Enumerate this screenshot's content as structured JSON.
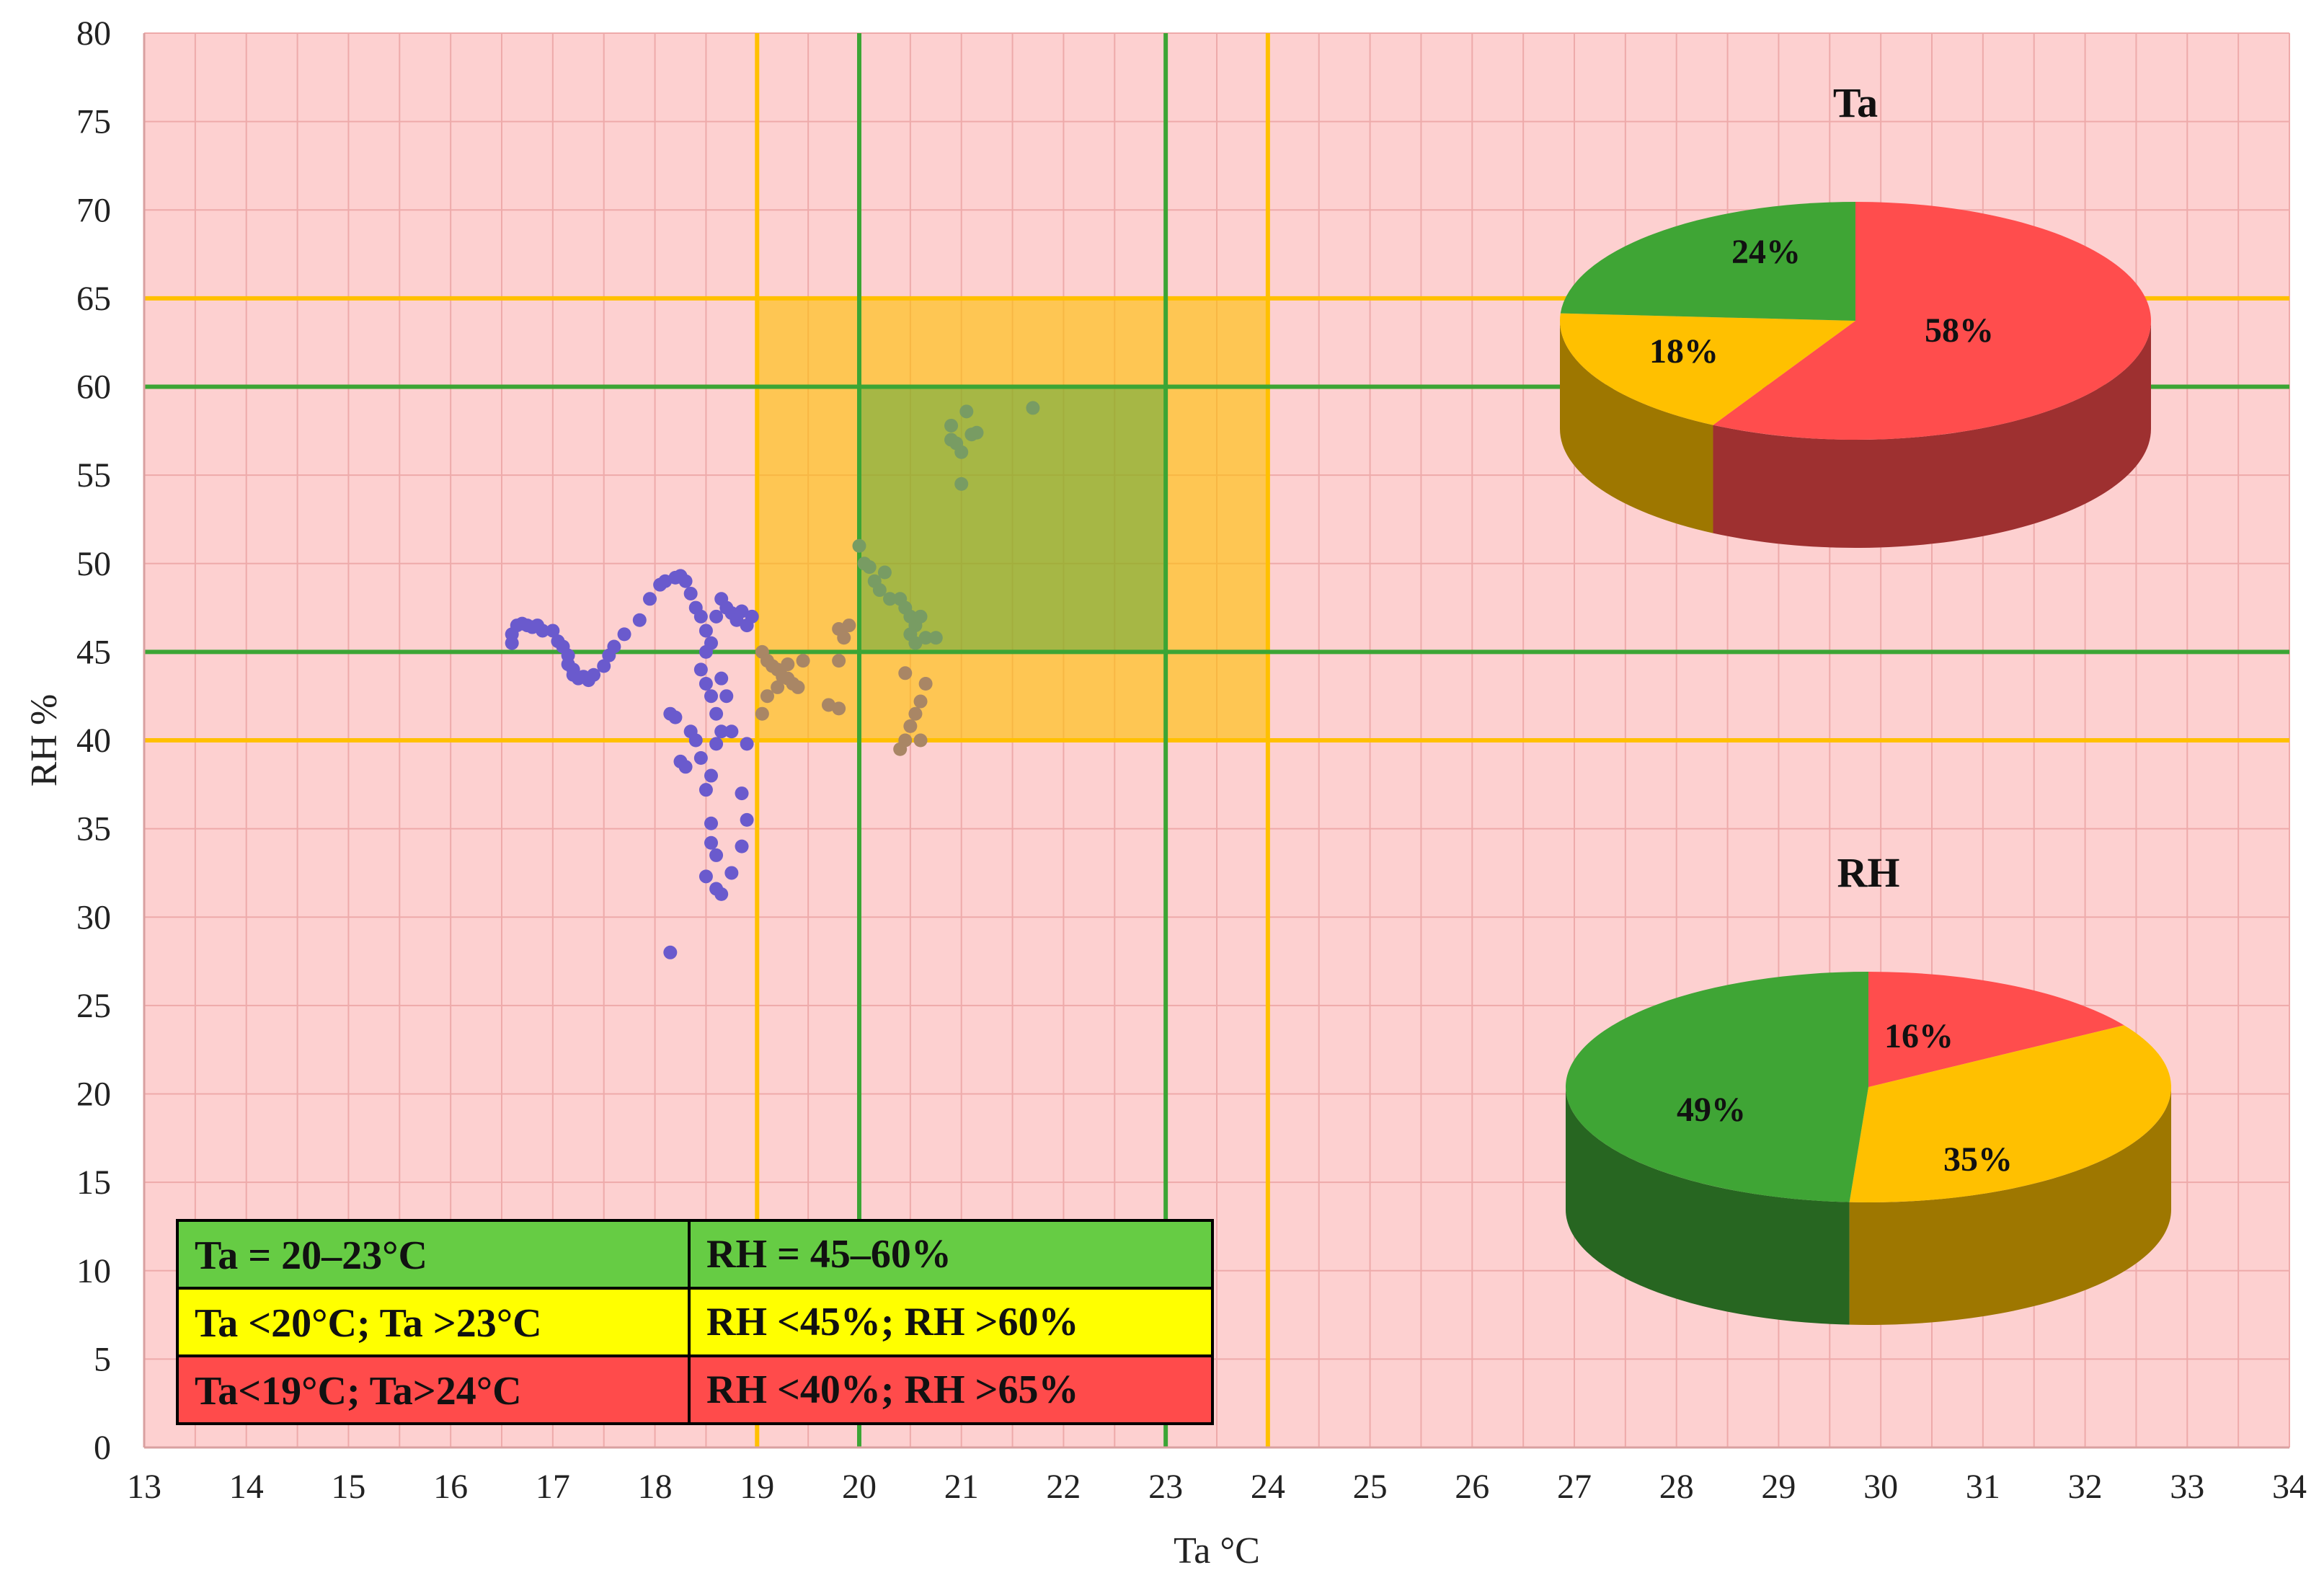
{
  "chart_data": {
    "type": "scatter",
    "title": "",
    "xlabel": "Ta °C",
    "ylabel": "RH %",
    "xlim": [
      13,
      34
    ],
    "ylim": [
      0,
      80
    ],
    "x_ticks": [
      "13",
      "14",
      "15",
      "16",
      "17",
      "18",
      "19",
      "20",
      "21",
      "22",
      "23",
      "24",
      "25",
      "26",
      "27",
      "28",
      "29",
      "30",
      "31",
      "32",
      "33",
      "34"
    ],
    "y_ticks": [
      "0",
      "5",
      "10",
      "15",
      "20",
      "25",
      "30",
      "35",
      "40",
      "45",
      "50",
      "55",
      "60",
      "65",
      "70",
      "75",
      "80"
    ],
    "grid": true,
    "background_color": "#fdd0d0",
    "zones": {
      "acceptable_color": "#ffc000",
      "optimal_color": "#3ca535",
      "acceptable_ta": [
        19,
        24
      ],
      "acceptable_rh": [
        40,
        65
      ],
      "optimal_ta": [
        20,
        23
      ],
      "optimal_rh": [
        45,
        60
      ]
    },
    "series": [
      {
        "color": "#6a5acd",
        "points": [
          [
            16.6,
            45.5
          ],
          [
            16.6,
            46.0
          ],
          [
            16.65,
            46.5
          ],
          [
            16.7,
            46.6
          ],
          [
            16.75,
            46.5
          ],
          [
            16.8,
            46.4
          ],
          [
            16.85,
            46.5
          ],
          [
            16.9,
            46.2
          ],
          [
            17.0,
            46.2
          ],
          [
            17.05,
            45.6
          ],
          [
            17.1,
            45.3
          ],
          [
            17.15,
            44.8
          ],
          [
            17.15,
            44.3
          ],
          [
            17.2,
            44.0
          ],
          [
            17.2,
            43.7
          ],
          [
            17.25,
            43.5
          ],
          [
            17.3,
            43.6
          ],
          [
            17.35,
            43.4
          ],
          [
            17.4,
            43.7
          ],
          [
            17.5,
            44.2
          ],
          [
            17.55,
            44.8
          ],
          [
            17.6,
            45.3
          ],
          [
            17.7,
            46.0
          ],
          [
            17.85,
            46.8
          ],
          [
            17.95,
            48.0
          ],
          [
            18.05,
            48.8
          ],
          [
            18.1,
            49.0
          ],
          [
            18.2,
            49.2
          ],
          [
            18.25,
            49.3
          ],
          [
            18.3,
            49.0
          ],
          [
            18.35,
            48.3
          ],
          [
            18.4,
            47.5
          ],
          [
            18.45,
            47.0
          ],
          [
            18.5,
            46.2
          ],
          [
            18.55,
            45.5
          ],
          [
            18.5,
            45.0
          ],
          [
            18.45,
            44.0
          ],
          [
            18.5,
            43.2
          ],
          [
            18.55,
            42.5
          ],
          [
            18.6,
            41.5
          ],
          [
            18.65,
            40.5
          ],
          [
            18.6,
            39.8
          ],
          [
            18.55,
            38.0
          ],
          [
            18.5,
            37.2
          ],
          [
            18.45,
            39.0
          ],
          [
            18.4,
            40.0
          ],
          [
            18.35,
            40.5
          ],
          [
            18.3,
            38.5
          ],
          [
            18.25,
            38.8
          ],
          [
            18.2,
            41.3
          ],
          [
            18.15,
            41.5
          ],
          [
            18.6,
            47.0
          ],
          [
            18.65,
            48.0
          ],
          [
            18.7,
            47.5
          ],
          [
            18.75,
            47.2
          ],
          [
            18.8,
            46.8
          ],
          [
            18.85,
            47.3
          ],
          [
            18.9,
            46.5
          ],
          [
            18.95,
            47.0
          ],
          [
            18.55,
            35.3
          ],
          [
            18.55,
            34.2
          ],
          [
            18.6,
            33.5
          ],
          [
            18.5,
            32.3
          ],
          [
            18.6,
            31.6
          ],
          [
            18.65,
            31.3
          ],
          [
            18.15,
            28.0
          ],
          [
            18.75,
            32.5
          ],
          [
            18.85,
            34.0
          ],
          [
            18.9,
            35.5
          ],
          [
            18.85,
            37.0
          ],
          [
            18.9,
            39.8
          ],
          [
            18.75,
            40.5
          ],
          [
            18.7,
            42.5
          ],
          [
            18.65,
            43.5
          ]
        ]
      },
      {
        "color": "#a98665",
        "points": [
          [
            19.05,
            45.0
          ],
          [
            19.1,
            44.5
          ],
          [
            19.15,
            44.2
          ],
          [
            19.2,
            44.0
          ],
          [
            19.25,
            43.6
          ],
          [
            19.3,
            44.3
          ],
          [
            19.35,
            43.2
          ],
          [
            19.4,
            43.0
          ],
          [
            19.45,
            44.5
          ],
          [
            19.05,
            41.5
          ],
          [
            19.1,
            42.5
          ],
          [
            19.2,
            43.0
          ],
          [
            19.3,
            43.5
          ],
          [
            19.8,
            46.3
          ],
          [
            19.85,
            45.8
          ],
          [
            19.9,
            46.5
          ],
          [
            19.8,
            44.5
          ],
          [
            19.7,
            42.0
          ],
          [
            19.8,
            41.8
          ],
          [
            20.45,
            40.0
          ],
          [
            20.5,
            40.8
          ],
          [
            20.55,
            41.5
          ],
          [
            20.6,
            42.2
          ],
          [
            20.65,
            43.2
          ],
          [
            20.6,
            40.0
          ],
          [
            20.4,
            39.5
          ],
          [
            20.45,
            43.8
          ]
        ]
      },
      {
        "color": "#789c63",
        "points": [
          [
            20.0,
            51.0
          ],
          [
            20.05,
            50.0
          ],
          [
            20.1,
            49.8
          ],
          [
            20.15,
            49.0
          ],
          [
            20.2,
            48.5
          ],
          [
            20.25,
            49.5
          ],
          [
            20.3,
            48.0
          ],
          [
            20.4,
            48.0
          ],
          [
            20.45,
            47.5
          ],
          [
            20.5,
            47.0
          ],
          [
            20.55,
            46.5
          ],
          [
            20.6,
            47.0
          ],
          [
            20.5,
            46.0
          ],
          [
            20.55,
            45.5
          ],
          [
            20.65,
            45.8
          ],
          [
            20.75,
            45.8
          ],
          [
            20.9,
            57.8
          ],
          [
            20.9,
            57.0
          ],
          [
            20.95,
            56.8
          ],
          [
            21.0,
            56.3
          ],
          [
            21.05,
            58.6
          ],
          [
            21.1,
            57.3
          ],
          [
            21.15,
            57.4
          ],
          [
            21.0,
            54.5
          ],
          [
            21.7,
            58.8
          ]
        ]
      }
    ],
    "legend_table": [
      [
        "Ta = 20–23°C",
        "RH = 45–60%"
      ],
      [
        "Ta <20°C; Ta >23°C",
        "RH <45%; RH >60%"
      ],
      [
        "Ta<19°C; Ta>24°C",
        "RH <40%; RH >65%"
      ]
    ],
    "legend_row_colors": [
      "#66cc44",
      "#ffff00",
      "#ff4b4b"
    ],
    "pies": [
      {
        "title": "Ta",
        "slices": [
          {
            "value": 58,
            "label": "58%",
            "color": "#ff4d4d"
          },
          {
            "value": 18,
            "label": "18%",
            "color": "#ffc000"
          },
          {
            "value": 24,
            "label": "24%",
            "color": "#3fa535"
          }
        ]
      },
      {
        "title": "RH",
        "slices": [
          {
            "value": 16,
            "label": "16%",
            "color": "#ff4d4d"
          },
          {
            "value": 35,
            "label": "35%",
            "color": "#ffc000"
          },
          {
            "value": 49,
            "label": "49%",
            "color": "#3fa535"
          }
        ]
      }
    ]
  }
}
